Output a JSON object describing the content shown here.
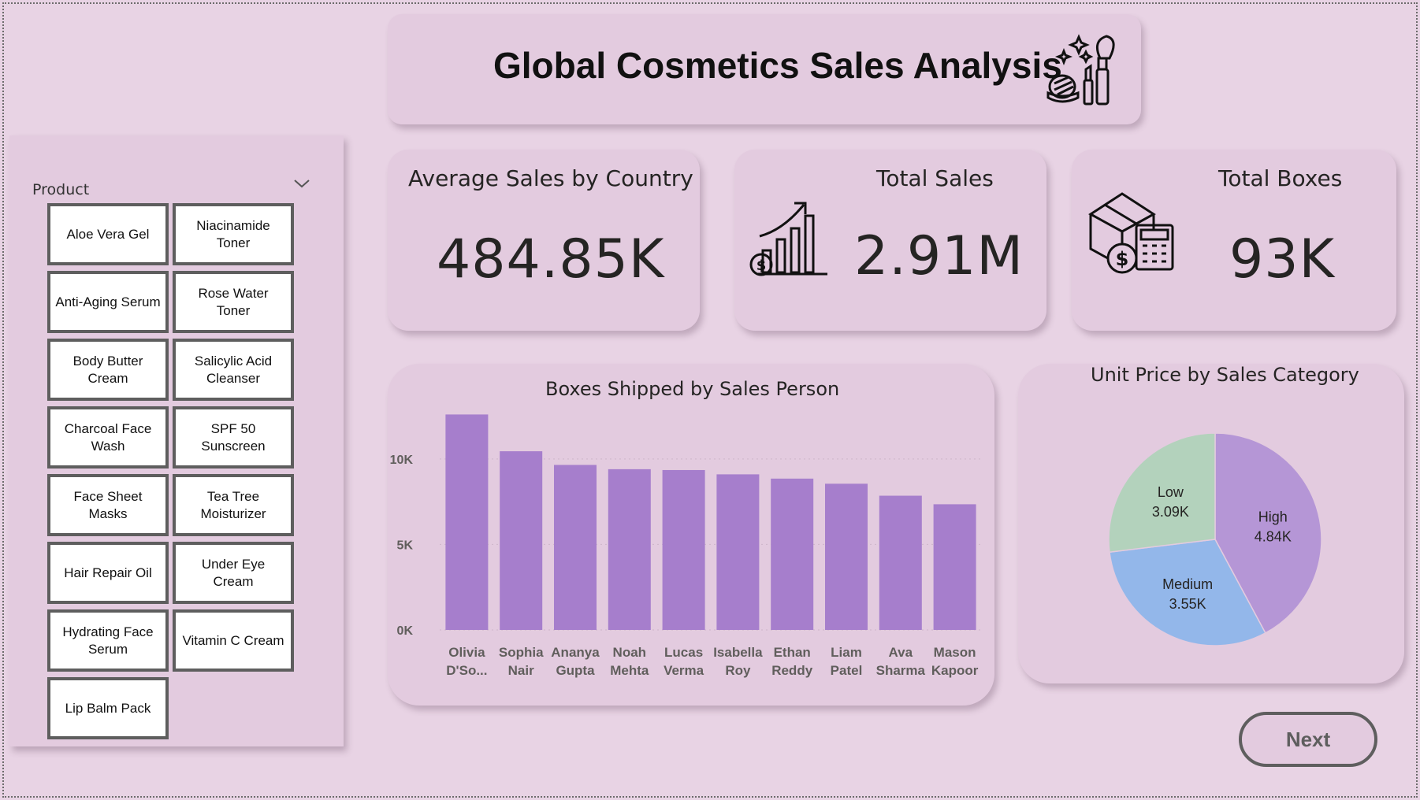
{
  "title": "Global Cosmetics Sales Analysis",
  "slicer": {
    "label": "Product",
    "items": [
      "Aloe Vera Gel",
      "Niacinamide Toner",
      "Anti-Aging Serum",
      "Rose Water Toner",
      "Body Butter Cream",
      "Salicylic Acid Cleanser",
      "Charcoal Face Wash",
      "SPF 50 Sunscreen",
      "Face Sheet Masks",
      "Tea Tree Moisturizer",
      "Hair Repair Oil",
      "Under Eye Cream",
      "Hydrating Face Serum",
      "Vitamin C Cream",
      "Lip Balm Pack"
    ]
  },
  "kpis": {
    "avg_sales": {
      "label": "Average Sales by Country",
      "value": "484.85K"
    },
    "total_sales": {
      "label": "Total Sales",
      "value": "2.91M"
    },
    "total_boxes": {
      "label": "Total Boxes",
      "value": "93K"
    }
  },
  "next_label": "Next",
  "colors": {
    "background": "#e8d3e4",
    "card": "#e3cbdf",
    "bar": "#a67ecc",
    "pie_high": "#b596d6",
    "pie_medium": "#93b7ea",
    "pie_low": "#b3d2bc"
  },
  "chart_data": [
    {
      "type": "bar",
      "title": "Boxes Shipped by Sales Person",
      "categories": [
        [
          "Olivia",
          "D'So..."
        ],
        [
          "Sophia",
          "Nair"
        ],
        [
          "Ananya",
          "Gupta"
        ],
        [
          "Noah",
          "Mehta"
        ],
        [
          "Lucas",
          "Verma"
        ],
        [
          "Isabella",
          "Roy"
        ],
        [
          "Ethan",
          "Reddy"
        ],
        [
          "Liam",
          "Patel"
        ],
        [
          "Ava",
          "Sharma"
        ],
        [
          "Mason",
          "Kapoor"
        ]
      ],
      "values": [
        12600,
        10450,
        9650,
        9400,
        9350,
        9100,
        8850,
        8550,
        7850,
        7350
      ],
      "yticks": [
        "0K",
        "5K",
        "10K"
      ],
      "ylim": [
        0,
        14000
      ],
      "grid": true
    },
    {
      "type": "pie",
      "title": "Unit Price by Sales Category",
      "labels": [
        "High",
        "Medium",
        "Low"
      ],
      "values": [
        4840,
        3550,
        3090
      ],
      "value_labels": [
        "4.84K",
        "3.55K",
        "3.09K"
      ]
    }
  ]
}
